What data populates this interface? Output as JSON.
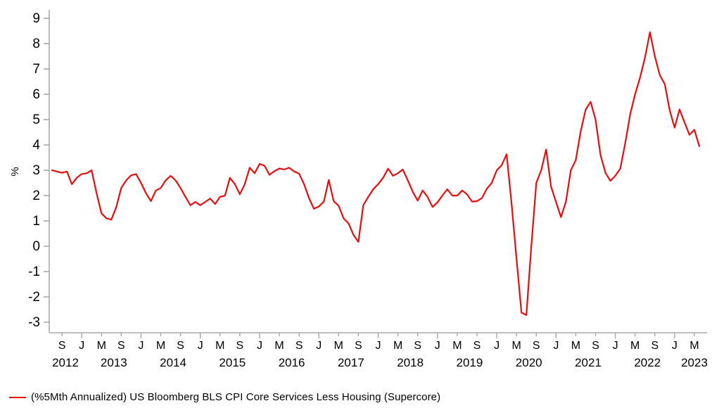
{
  "chart_data": {
    "type": "line",
    "title": "",
    "xlabel": "",
    "ylabel": "%",
    "ylim": [
      -3,
      9
    ],
    "ytick_step": 1,
    "grid": false,
    "legend_position": "bottom-left",
    "x_monthly_start": "2012-07",
    "x_monthly_end": "2023-06",
    "x_tick_letter_by_month": {
      "0": "J",
      "4": "M",
      "8": "S"
    },
    "years": [
      "2012",
      "2013",
      "2014",
      "2015",
      "2016",
      "2017",
      "2018",
      "2019",
      "2020",
      "2021",
      "2022",
      "2023"
    ],
    "series": [
      {
        "name": "(%5Mth Annualized) US Bloomberg BLS CPI Core Services Less Housing (Supercore)",
        "color": "#e60d0d",
        "monthly_values": [
          3.0,
          2.95,
          2.9,
          2.95,
          2.45,
          2.7,
          2.85,
          2.88,
          3.0,
          2.1,
          1.3,
          1.1,
          1.05,
          1.55,
          2.3,
          2.6,
          2.8,
          2.85,
          2.5,
          2.1,
          1.78,
          2.2,
          2.3,
          2.6,
          2.78,
          2.6,
          2.3,
          1.95,
          1.62,
          1.75,
          1.62,
          1.75,
          1.88,
          1.67,
          1.95,
          2.0,
          2.7,
          2.45,
          2.05,
          2.45,
          3.1,
          2.88,
          3.25,
          3.18,
          2.82,
          2.96,
          3.07,
          3.03,
          3.1,
          2.95,
          2.87,
          2.45,
          1.9,
          1.48,
          1.57,
          1.76,
          2.62,
          1.78,
          1.6,
          1.1,
          0.9,
          0.45,
          0.17,
          1.62,
          1.95,
          2.25,
          2.45,
          2.7,
          3.06,
          2.78,
          2.88,
          3.03,
          2.6,
          2.15,
          1.8,
          2.2,
          1.95,
          1.55,
          1.73,
          2.0,
          2.25,
          2.0,
          2.0,
          2.2,
          2.05,
          1.76,
          1.78,
          1.9,
          2.27,
          2.5,
          3.0,
          3.2,
          3.63,
          1.7,
          -0.5,
          -2.62,
          -2.72,
          0.0,
          2.5,
          3.0,
          3.82,
          2.35,
          1.75,
          1.15,
          1.76,
          3.0,
          3.4,
          4.55,
          5.4,
          5.7,
          5.0,
          3.6,
          2.9,
          2.58,
          2.78,
          3.06,
          4.07,
          5.2,
          6.0,
          6.65,
          7.45,
          8.45,
          7.5,
          6.76,
          6.4,
          5.37,
          4.68,
          5.4,
          4.9,
          4.4,
          4.6,
          3.95
        ]
      }
    ],
    "axis_color": "#a8a8a8",
    "text_color": "#000000"
  },
  "legend": {
    "label": "(%5Mth Annualized) US Bloomberg BLS CPI Core Services Less Housing (Supercore)"
  }
}
